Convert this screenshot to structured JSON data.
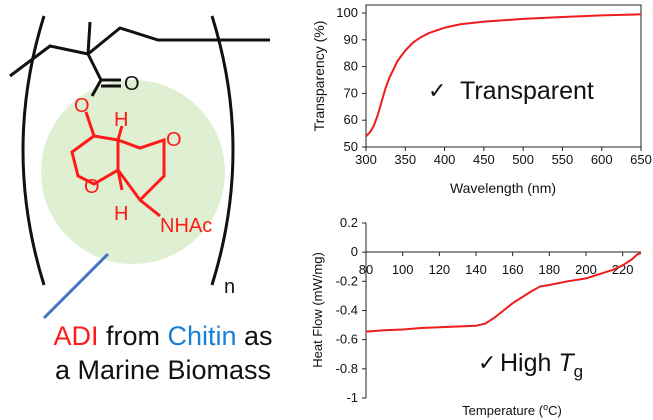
{
  "structure": {
    "atoms": {
      "oxygen_carbonyl": "O",
      "oxygen_ester": "O",
      "oxygen_ring_top": "O",
      "oxygen_ring_left": "O",
      "h_top": "H",
      "h_bottom": "H",
      "nhac": "NHAc",
      "n_subscript": "n"
    },
    "colors": {
      "monomer": "#ff1a1a",
      "backbone": "#111111",
      "highlight": "#dfefd2",
      "connector": "#4472c4"
    }
  },
  "caption": {
    "line1": {
      "adi": "ADI",
      "from": "from",
      "chitin": "Chitin",
      "as": "as"
    },
    "line2": "a Marine Biomass",
    "colors": {
      "adi": "#ff1a1a",
      "chitin": "#1a7fd6"
    }
  },
  "chart_data": [
    {
      "type": "line",
      "title": "",
      "xlabel": "Wavelength (nm)",
      "ylabel": "Transparency (%)",
      "xlim": [
        300,
        650
      ],
      "ylim": [
        50,
        100
      ],
      "xticks": [
        300,
        350,
        400,
        450,
        500,
        550,
        600,
        650
      ],
      "yticks": [
        50,
        60,
        70,
        80,
        90,
        100
      ],
      "annotation": {
        "check": "✓",
        "text": "Transparent"
      },
      "series": [
        {
          "name": "Transparency",
          "color": "#ee1c1c",
          "x": [
            300,
            305,
            310,
            315,
            320,
            325,
            330,
            335,
            340,
            350,
            360,
            370,
            380,
            400,
            420,
            450,
            500,
            550,
            600,
            650
          ],
          "y": [
            54,
            55.5,
            58,
            62,
            67,
            72,
            76,
            79,
            82,
            86,
            89,
            91,
            92.5,
            94.5,
            95.8,
            96.8,
            97.8,
            98.5,
            99.1,
            99.5
          ]
        }
      ]
    },
    {
      "type": "line",
      "title": "",
      "xlabel": "Temperature (°C)",
      "xlabel_parts": {
        "pre": "Temperature (",
        "sup": "o",
        "post": "C)"
      },
      "ylabel": "Heat Flow (mW/mg)",
      "xlim": [
        80,
        230
      ],
      "ylim": [
        -1,
        0.2
      ],
      "xticks": [
        80,
        100,
        120,
        140,
        160,
        180,
        200,
        220
      ],
      "yticks": [
        0.2,
        0,
        -0.2,
        -0.4,
        -0.6,
        -0.8,
        -1
      ],
      "annotation": {
        "check": "✓",
        "text": "High ",
        "italic": "T",
        "sub": "g"
      },
      "series": [
        {
          "name": "Heat Flow",
          "color": "#ee1c1c",
          "x": [
            80,
            90,
            100,
            110,
            120,
            130,
            140,
            145,
            150,
            155,
            160,
            165,
            170,
            175,
            180,
            190,
            200,
            205,
            210,
            215,
            220,
            225,
            228,
            230
          ],
          "y": [
            -0.545,
            -0.535,
            -0.53,
            -0.52,
            -0.515,
            -0.51,
            -0.505,
            -0.49,
            -0.45,
            -0.4,
            -0.35,
            -0.31,
            -0.27,
            -0.235,
            -0.225,
            -0.2,
            -0.18,
            -0.16,
            -0.14,
            -0.12,
            -0.09,
            -0.05,
            -0.015,
            -0.005
          ]
        }
      ]
    }
  ]
}
